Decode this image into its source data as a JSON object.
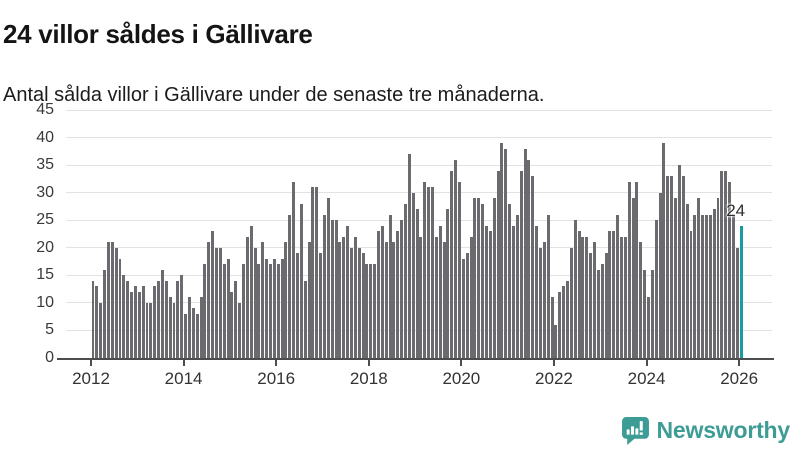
{
  "header": {
    "title": "24 villor såldes i Gällivare",
    "subtitle": "Antal sålda villor i Gällivare under de senaste tre månaderna."
  },
  "chart_data": {
    "type": "bar",
    "title": "24 villor såldes i Gällivare",
    "subtitle": "Antal sålda villor i Gällivare under de senaste tre månaderna.",
    "description": "Monthly bars of houses sold per rolling three months, Jan 2012 through early 2026",
    "ylim": [
      0,
      45
    ],
    "y_ticks": [
      0,
      5,
      10,
      15,
      20,
      25,
      30,
      35,
      40,
      45
    ],
    "x_tick_labels": [
      "2012",
      "2014",
      "2016",
      "2018",
      "2020",
      "2022",
      "2024",
      "2026"
    ],
    "months_between_ticks": 24,
    "grid": true,
    "bar_color": "#6a6a6f",
    "grid_color": "#e2e2e2",
    "axis_color": "#4d4d4d",
    "values": [
      14,
      13,
      10,
      16,
      21,
      21,
      20,
      18,
      15,
      14,
      12,
      13,
      12,
      13,
      10,
      10,
      13,
      14,
      16,
      14,
      11,
      10,
      14,
      15,
      8,
      11,
      9,
      8,
      11,
      17,
      21,
      23,
      20,
      20,
      17,
      18,
      12,
      14,
      10,
      17,
      22,
      24,
      20,
      17,
      21,
      18,
      17,
      18,
      17,
      18,
      21,
      26,
      32,
      19,
      28,
      14,
      21,
      31,
      31,
      19,
      26,
      29,
      25,
      25,
      21,
      22,
      24,
      20,
      22,
      20,
      19,
      17,
      17,
      17,
      23,
      24,
      21,
      26,
      21,
      23,
      25,
      28,
      37,
      30,
      27,
      22,
      32,
      31,
      31,
      22,
      24,
      21,
      27,
      34,
      36,
      32,
      18,
      19,
      22,
      29,
      29,
      28,
      24,
      23,
      29,
      34,
      39,
      38,
      28,
      24,
      26,
      34,
      38,
      36,
      33,
      24,
      20,
      21,
      26,
      11,
      6,
      12,
      13,
      14,
      20,
      25,
      23,
      22,
      22,
      19,
      21,
      16,
      17,
      19,
      23,
      23,
      26,
      22,
      22,
      32,
      29,
      32,
      21,
      16,
      11,
      16,
      25,
      30,
      39,
      33,
      33,
      29,
      35,
      33,
      28,
      23,
      26,
      29,
      26,
      26,
      26,
      27,
      29,
      34,
      34,
      32,
      26,
      20,
      24
    ],
    "highlight": {
      "index": 168,
      "value": 24,
      "label": "24",
      "color": "#1b9ba1"
    }
  },
  "branding": {
    "logo_text": "Newsworthy",
    "logo_color": "#3E9C96"
  }
}
